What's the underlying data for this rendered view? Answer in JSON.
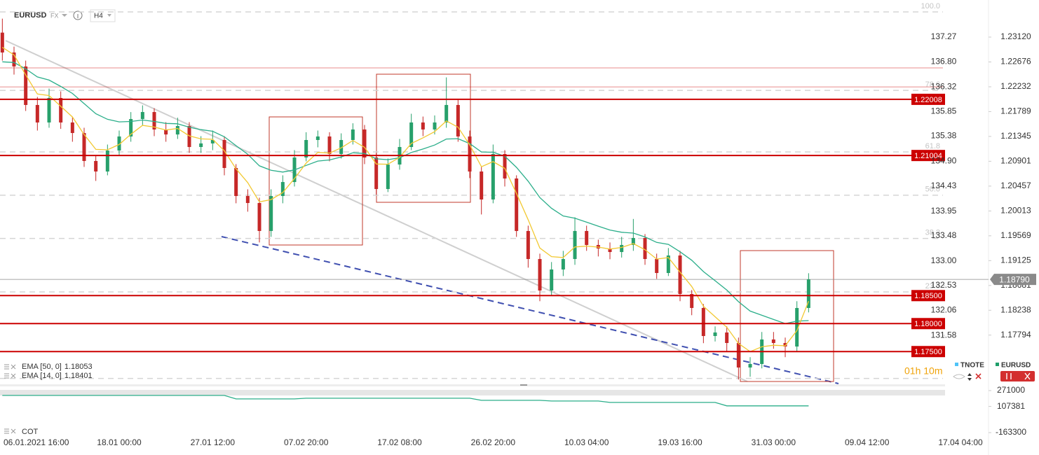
{
  "chart_data": [
    {
      "type": "candlestick",
      "symbol": "EURUSD",
      "market": "FX",
      "interval": "H4",
      "categories": [
        null,
        null,
        "06.01.2021 16:00",
        null,
        null,
        null,
        null,
        null,
        null,
        null,
        "18.01 00:00",
        null,
        null,
        null,
        null,
        null,
        null,
        null,
        "27.01 12:00",
        null,
        null,
        null,
        null,
        null,
        null,
        null,
        "07.02 20:00",
        null,
        null,
        null,
        null,
        null,
        null,
        null,
        "17.02 08:00",
        null,
        null,
        null,
        null,
        null,
        null,
        null,
        "26.02 20:00",
        null,
        null,
        null,
        null,
        null,
        null,
        null,
        "10.03 04:00",
        null,
        null,
        null,
        null,
        null,
        null,
        null,
        "19.03 16:00",
        null,
        null,
        null,
        null,
        null,
        null,
        null,
        "31.03 00:00",
        null,
        null,
        null,
        null,
        null,
        null,
        null,
        "09.04 12:00",
        null,
        null,
        null,
        null,
        null,
        null,
        null,
        "17.04 04:00",
        null,
        null
      ],
      "open": [
        1.232,
        1.22845,
        1.22595,
        1.21907,
        1.21594,
        1.22032,
        1.21594,
        1.21406,
        1.20906,
        1.20718,
        1.21093,
        1.21344,
        1.21656,
        1.21781,
        1.21469,
        1.2138,
        1.21531,
        1.21156,
        1.2122,
        1.21281,
        1.20781,
        1.2028,
        1.20155,
        1.19655,
        1.2028,
        1.2053,
        1.20968,
        1.21281,
        1.21344,
        1.21031,
        1.21281,
        1.21469,
        1.20968,
        1.20405,
        1.20843,
        1.21156,
        1.21594,
        1.21469,
        1.21594,
        1.21907,
        1.21344,
        1.20718,
        1.20218,
        1.21031,
        1.20593,
        1.19655,
        1.19154,
        1.18591,
        1.18967,
        1.19154,
        1.19655,
        1.19405,
        1.19342,
        1.19279,
        1.19405,
        1.1953,
        1.19154,
        1.18904,
        1.19217,
        1.18529,
        1.18279,
        1.17778,
        1.17841,
        1.17653,
        1.17215,
        1.17278,
        1.17716,
        1.17653,
        1.1759,
        1.18279,
        null,
        null,
        null,
        null,
        null,
        null,
        null,
        null,
        null,
        null,
        null,
        null,
        null,
        null,
        null
      ],
      "high": [
        1.2345,
        1.2295,
        1.227,
        1.2205,
        1.222,
        1.2215,
        1.217,
        1.215,
        1.21,
        1.212,
        1.2145,
        1.2178,
        1.219,
        1.2185,
        1.216,
        1.2168,
        1.216,
        1.2135,
        1.2145,
        1.2135,
        1.2085,
        1.204,
        1.2025,
        1.204,
        1.2065,
        1.211,
        1.2142,
        1.2145,
        1.2142,
        1.214,
        1.2158,
        1.2155,
        1.2105,
        1.2095,
        1.213,
        1.2175,
        1.217,
        1.2172,
        1.224,
        1.22,
        1.2145,
        1.208,
        1.212,
        1.211,
        1.2065,
        1.1975,
        1.1925,
        1.191,
        1.193,
        1.199,
        1.1975,
        1.195,
        1.1945,
        1.1955,
        1.1987,
        1.196,
        1.1925,
        1.1935,
        1.193,
        1.186,
        1.1835,
        1.1795,
        1.1795,
        1.1775,
        1.174,
        1.1785,
        1.1785,
        1.1775,
        1.184,
        1.189,
        null,
        null,
        null,
        null,
        null,
        null,
        null,
        null,
        null,
        null,
        null,
        null,
        null,
        null,
        null
      ],
      "low": [
        1.227,
        1.2245,
        1.218,
        1.2145,
        1.215,
        1.2148,
        1.2125,
        1.208,
        1.2055,
        1.2065,
        1.21,
        1.2125,
        1.2155,
        1.2135,
        1.2125,
        1.213,
        1.2105,
        1.2105,
        1.211,
        1.2065,
        1.2015,
        1.2,
        1.1945,
        1.1955,
        1.2015,
        1.2045,
        1.209,
        1.2115,
        1.209,
        1.2095,
        1.212,
        1.2085,
        1.203,
        1.2035,
        1.2075,
        1.211,
        1.2135,
        1.2138,
        1.215,
        1.2125,
        1.206,
        1.1995,
        1.2015,
        1.2045,
        1.1955,
        1.19,
        1.184,
        1.185,
        1.1885,
        1.1905,
        1.193,
        1.192,
        1.1915,
        1.1918,
        1.193,
        1.1905,
        1.188,
        1.1885,
        1.184,
        1.1815,
        1.1765,
        1.1768,
        1.175,
        1.17,
        1.1705,
        1.172,
        1.1755,
        1.174,
        1.175,
        1.182,
        null,
        null,
        null,
        null,
        null,
        null,
        null,
        null,
        null,
        null,
        null,
        null,
        null,
        null,
        null
      ],
      "close": [
        1.22845,
        1.22595,
        1.21907,
        1.21594,
        1.22032,
        1.21594,
        1.21406,
        1.20906,
        1.20718,
        1.21093,
        1.21344,
        1.21656,
        1.21781,
        1.21469,
        1.2138,
        1.21531,
        1.21156,
        1.2122,
        1.21281,
        1.20781,
        1.2028,
        1.20155,
        1.19655,
        1.2028,
        1.2053,
        1.20968,
        1.21281,
        1.21344,
        1.21031,
        1.21281,
        1.21469,
        1.20968,
        1.20405,
        1.20843,
        1.21156,
        1.21594,
        1.21469,
        1.21594,
        1.21907,
        1.21344,
        1.20718,
        1.20218,
        1.21031,
        1.20593,
        1.19655,
        1.19154,
        1.18591,
        1.18967,
        1.19154,
        1.19655,
        1.19405,
        1.19342,
        1.19279,
        1.19405,
        1.1953,
        1.19154,
        1.18904,
        1.19217,
        1.18529,
        1.18279,
        1.17778,
        1.17841,
        1.17653,
        1.17215,
        1.17278,
        1.17716,
        1.17653,
        1.1759,
        1.18279,
        1.1879,
        null,
        null,
        null,
        null,
        null,
        null,
        null,
        null,
        null,
        null,
        null,
        null,
        null,
        null,
        null
      ],
      "up_color": "#27a06b",
      "down_color": "#c62828",
      "series": [
        {
          "name": "EMA [50, 0]",
          "color": "#2bae8a",
          "values": [
            1.22679,
            1.22666,
            1.22552,
            1.22408,
            1.22352,
            1.22238,
            1.22113,
            1.21932,
            1.2175,
            1.21651,
            1.21605,
            1.21613,
            1.21638,
            1.21613,
            1.21578,
            1.21571,
            1.21509,
            1.21466,
            1.21438,
            1.21339,
            1.2118,
            1.21026,
            1.2082,
            1.20739,
            1.20708,
            1.20747,
            1.20827,
            1.20905,
            1.20924,
            1.20978,
            1.21052,
            1.21039,
            1.20944,
            1.20929,
            1.20963,
            1.21058,
            1.2112,
            1.21191,
            1.21298,
            1.21305,
            1.21217,
            1.21067,
            1.21062,
            1.20992,
            1.20792,
            1.20546,
            1.20253,
            1.2006,
            1.19924,
            1.19884,
            1.19812,
            1.19741,
            1.19672,
            1.19632,
            1.19617,
            1.19548,
            1.19451,
            1.19416,
            1.19283,
            1.19132,
            1.18929,
            1.18766,
            1.18599,
            1.18391,
            1.18224,
            1.18148,
            1.18074,
            1.18001,
            1.18043,
            1.18053,
            null,
            null,
            null,
            null,
            null,
            null,
            null,
            null,
            null,
            null,
            null,
            null,
            null,
            null,
            null
          ]
        },
        {
          "name": "EMA [14, 0]",
          "color": "#f2c933",
          "values": [
            1.22938,
            1.22801,
            1.22443,
            1.22103,
            1.22075,
            1.21883,
            1.21692,
            1.21378,
            1.21114,
            1.21106,
            1.21201,
            1.21383,
            1.21542,
            1.21513,
            1.2146,
            1.21488,
            1.21355,
            1.21301,
            1.21293,
            1.21088,
            1.20765,
            1.20521,
            1.20175,
            1.20217,
            1.20342,
            1.20592,
            1.20868,
            1.21058,
            1.21047,
            1.21141,
            1.21272,
            1.2115,
            1.20852,
            1.20848,
            1.20971,
            1.2122,
            1.2132,
            1.2143,
            1.21621,
            1.2151,
            1.21193,
            1.20803,
            1.20894,
            1.20774,
            1.20326,
            1.19857,
            1.19351,
            1.19197,
            1.1918,
            1.1937,
            1.19384,
            1.19367,
            1.19332,
            1.19361,
            1.19429,
            1.19319,
            1.19153,
            1.19179,
            1.18919,
            1.18663,
            1.18309,
            1.18122,
            1.17934,
            1.17646,
            1.17499,
            1.17586,
            1.17613,
            1.17604,
            1.17874,
            1.18401,
            null,
            null,
            null,
            null,
            null,
            null,
            null,
            null,
            null,
            null,
            null,
            null,
            null,
            null,
            null
          ]
        }
      ],
      "ylim": [
        1.16965,
        1.23683
      ],
      "yticks": [
        {
          "value": 1.2312,
          "label": "1.23120"
        },
        1.22676,
        1.22232,
        1.21789,
        1.21345,
        1.20901,
        1.20457,
        1.20013,
        1.19569,
        1.19125,
        1.18681,
        1.18238,
        1.17794
      ],
      "y2lim": [
        130.7,
        137.87
      ],
      "y2ticks": [
        137.27,
        {
          "value": 136.8,
          "label": "136.80"
        },
        136.32,
        135.85,
        135.38,
        {
          "value": 134.9,
          "label": "134.90"
        },
        134.43,
        133.95,
        133.48,
        {
          "value": 133,
          "label": "133.00"
        },
        132.53,
        132.06,
        131.58
      ],
      "grid": false,
      "levels": [
        1.22008,
        1.21004,
        {
          "value": 1.185,
          "label": "1.18500"
        },
        {
          "value": 1.18,
          "label": "1.18000"
        },
        {
          "value": 1.175,
          "label": "1.17500"
        }
      ],
      "thin_levels": [
        1.2257,
        1.2223
      ],
      "level_color": "#cc0000",
      "fibonacci": {
        "high": 1.2357,
        "low": 1.1702,
        "levels": [
          {
            "value": 100,
            "label": "100.0"
          },
          {
            "value": 78.6,
            "label": "78.6"
          },
          {
            "value": 61.8,
            "label": "61.8"
          },
          {
            "value": 50,
            "label": "50.0"
          },
          {
            "value": 38.2,
            "label": "38.2"
          },
          {
            "value": 23.6,
            "label": "23.6"
          }
        ]
      },
      "last_price": {
        "value": 1.1879,
        "label": "1.18790"
      },
      "countdown": "01h 10m",
      "instruments": [
        {
          "name": "TNOTE",
          "color": "#4fc3f7"
        },
        {
          "name": "EURUSD",
          "color": "#1e9e6a"
        }
      ]
    },
    {
      "type": "line",
      "title": "COT",
      "color": "#2bae8a",
      "values": [
        220600,
        220600,
        220600,
        220600,
        220600,
        220600,
        220600,
        220600,
        220600,
        220600,
        220600,
        220600,
        220600,
        220600,
        220600,
        220600,
        220600,
        220600,
        220600,
        220600,
        184600,
        184600,
        184600,
        184600,
        184600,
        184600,
        191800,
        191800,
        191800,
        191800,
        191800,
        191800,
        191800,
        191800,
        191800,
        191800,
        191800,
        191800,
        191800,
        191800,
        191800,
        170000,
        170000,
        170000,
        170000,
        170000,
        170000,
        162800,
        162800,
        162800,
        162800,
        162800,
        148400,
        148400,
        148400,
        148400,
        148400,
        148400,
        148400,
        148400,
        148400,
        148400,
        113000,
        113000,
        113000,
        113000,
        113000,
        113000,
        113000,
        113000,
        null,
        null,
        null,
        null,
        null,
        null,
        null,
        null,
        null,
        null,
        null,
        null,
        null,
        null,
        null
      ],
      "ylim": [
        -213700,
        343000
      ],
      "yticks": [
        271000,
        107381,
        -163300
      ]
    }
  ]
}
